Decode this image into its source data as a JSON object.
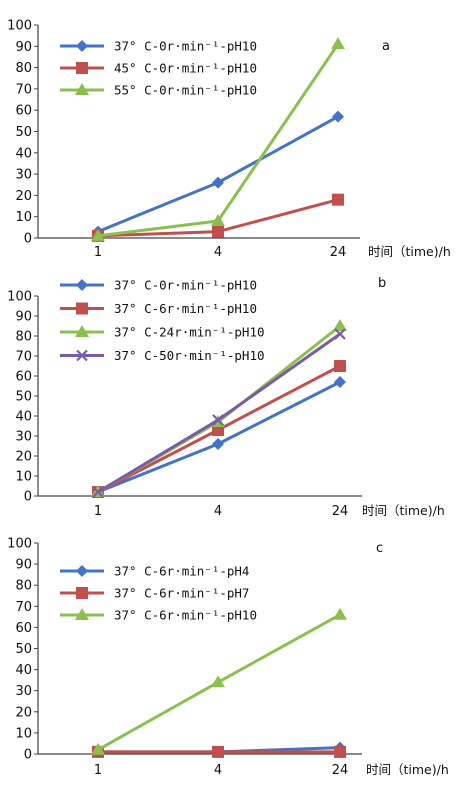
{
  "chart_data": [
    {
      "type": "line",
      "panel_label": "a",
      "categories": [
        "1",
        "4",
        "24"
      ],
      "xlabel": "时间（time)/h",
      "ylim": [
        0,
        100
      ],
      "yticks": [
        0,
        10,
        20,
        30,
        40,
        50,
        60,
        70,
        80,
        90,
        100
      ],
      "grid": false,
      "legend": "top-left",
      "series": [
        {
          "name": "37° C-0r·min⁻¹-pH10",
          "values": [
            3,
            26,
            57
          ],
          "color": "#4472c4",
          "marker": "diamond"
        },
        {
          "name": "45° C-0r·min⁻¹-pH10",
          "values": [
            1,
            3,
            18
          ],
          "color": "#c0504d",
          "marker": "square"
        },
        {
          "name": "55° C-0r·min⁻¹-pH10",
          "values": [
            1,
            8,
            91
          ],
          "color": "#8bbf4f",
          "marker": "triangle"
        }
      ]
    },
    {
      "type": "line",
      "panel_label": "b",
      "categories": [
        "1",
        "4",
        "24"
      ],
      "xlabel": "时间（time)/h",
      "ylim": [
        0,
        100
      ],
      "yticks": [
        0,
        10,
        20,
        30,
        40,
        50,
        60,
        70,
        80,
        90,
        100
      ],
      "grid": false,
      "legend": "top-left",
      "series": [
        {
          "name": "37° C-0r·min⁻¹-pH10",
          "values": [
            2,
            26,
            57
          ],
          "color": "#4472c4",
          "marker": "diamond"
        },
        {
          "name": "37° C-6r·min⁻¹-pH10",
          "values": [
            2,
            33,
            65
          ],
          "color": "#c0504d",
          "marker": "square"
        },
        {
          "name": "37° C-24r·min⁻¹-pH10",
          "values": [
            2,
            37,
            85
          ],
          "color": "#8bbf4f",
          "marker": "triangle"
        },
        {
          "name": "37° C-50r·min⁻¹-pH10",
          "values": [
            2,
            38,
            81
          ],
          "color": "#7b5aa6",
          "marker": "x"
        }
      ]
    },
    {
      "type": "line",
      "panel_label": "c",
      "categories": [
        "1",
        "4",
        "24"
      ],
      "xlabel": "时间（time)/h",
      "ylim": [
        0,
        100
      ],
      "yticks": [
        0,
        10,
        20,
        30,
        40,
        50,
        60,
        70,
        80,
        90,
        100
      ],
      "grid": false,
      "legend": "top-left",
      "series": [
        {
          "name": "37° C-6r·min⁻¹-pH4",
          "values": [
            1,
            1,
            3
          ],
          "color": "#4472c4",
          "marker": "diamond"
        },
        {
          "name": "37° C-6r·min⁻¹-pH7",
          "values": [
            1,
            1,
            1
          ],
          "color": "#c0504d",
          "marker": "square"
        },
        {
          "name": "37° C-6r·min⁻¹-pH10",
          "values": [
            2,
            34,
            66
          ],
          "color": "#8bbf4f",
          "marker": "triangle"
        }
      ]
    }
  ]
}
